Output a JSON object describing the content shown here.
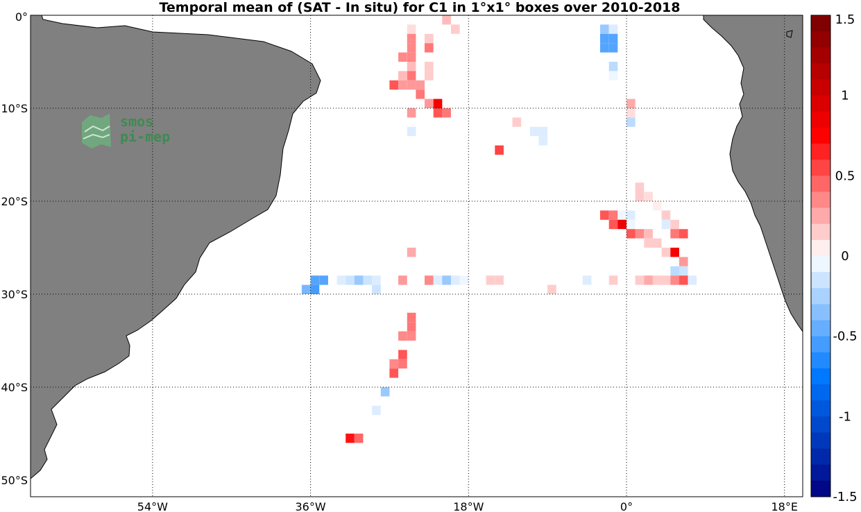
{
  "title": "Temporal mean of (SAT - In situ) for C1 in 1°x1° boxes over 2010-2018",
  "logo": {
    "line1": "smos",
    "line2": "pi-mep",
    "color": "#3f8a52"
  },
  "colors": {
    "land": "#808080",
    "ocean": "#ffffff",
    "grid": "#000000"
  },
  "y_ticks": [
    {
      "label": "0°",
      "lat": 0
    },
    {
      "label": "10°S",
      "lat": -10
    },
    {
      "label": "20°S",
      "lat": -20
    },
    {
      "label": "30°S",
      "lat": -30
    },
    {
      "label": "40°S",
      "lat": -40
    },
    {
      "label": "50°S",
      "lat": -50
    }
  ],
  "x_ticks": [
    {
      "label": "54°W",
      "lon": -54
    },
    {
      "label": "36°W",
      "lon": -36
    },
    {
      "label": "18°W",
      "lon": -18
    },
    {
      "label": "0°",
      "lon": 0
    },
    {
      "label": "18°E",
      "lon": 18
    }
  ],
  "colorbar": {
    "min": -1.5,
    "max": 1.5,
    "ticks": [
      "1.5",
      "1",
      "0.5",
      "0",
      "-0.5",
      "-1",
      "-1.5"
    ],
    "tick_values": [
      1.5,
      1,
      0.5,
      0,
      -0.5,
      -1,
      -1.5
    ]
  },
  "chart_data": {
    "type": "heatmap",
    "title": "Temporal mean of (SAT - In situ) for C1 in 1°x1° boxes over 2010-2018",
    "lon_range": [
      -72,
      20
    ],
    "lat_range": [
      -50,
      0
    ],
    "value_range": [
      -1.5,
      1.5
    ],
    "cells": [
      [
        -24.5,
        -1.5,
        0.1
      ],
      [
        -20.5,
        -0.5,
        0.2
      ],
      [
        -19.5,
        -1.5,
        0.15
      ],
      [
        -24.5,
        -2.5,
        0.35
      ],
      [
        -24.5,
        -3.5,
        0.35
      ],
      [
        -24.5,
        -4.5,
        0.35
      ],
      [
        -22.5,
        -2.5,
        0.15
      ],
      [
        -22.5,
        -3.5,
        0.4
      ],
      [
        -25.5,
        -4.5,
        0.35
      ],
      [
        -24.5,
        -5.5,
        0.2
      ],
      [
        -22.5,
        -5.5,
        0.15
      ],
      [
        -24.5,
        -6.5,
        0.4
      ],
      [
        -25.5,
        -6.5,
        0.2
      ],
      [
        -22.5,
        -6.5,
        0.15
      ],
      [
        -26.5,
        -7.5,
        0.5
      ],
      [
        -25.5,
        -7.5,
        0.3
      ],
      [
        -24.5,
        -7.5,
        0.3
      ],
      [
        -23.5,
        -7.5,
        0.3
      ],
      [
        -23.5,
        -8.5,
        0.4
      ],
      [
        -22.5,
        -9.5,
        0.3
      ],
      [
        -21.5,
        -9.5,
        0.8
      ],
      [
        -20.5,
        -10.5,
        0.4
      ],
      [
        -21.5,
        -10.5,
        0.5
      ],
      [
        -24.5,
        -10.5,
        0.3
      ],
      [
        -24.5,
        -12.5,
        -0.1
      ],
      [
        -12.5,
        -11.5,
        0.15
      ],
      [
        -10.5,
        -12.5,
        -0.1
      ],
      [
        -9.5,
        -12.5,
        -0.1
      ],
      [
        -9.5,
        -13.5,
        -0.1
      ],
      [
        -14.5,
        -14.5,
        0.55
      ],
      [
        -2.5,
        -1.5,
        -0.3
      ],
      [
        -1.5,
        -1.5,
        -0.1
      ],
      [
        -2.5,
        -2.5,
        -0.5
      ],
      [
        -1.5,
        -2.5,
        -0.5
      ],
      [
        -2.5,
        -3.5,
        -0.5
      ],
      [
        -1.5,
        -3.5,
        -0.5
      ],
      [
        -1.5,
        -5.5,
        -0.2
      ],
      [
        -1.5,
        -6.5,
        -0.05
      ],
      [
        0.5,
        -9.5,
        0.25
      ],
      [
        0.5,
        -10.5,
        0.1
      ],
      [
        0.5,
        -11.5,
        -0.2
      ],
      [
        1.5,
        -18.5,
        0.15
      ],
      [
        1.5,
        -19.5,
        0.15
      ],
      [
        2.5,
        -19.5,
        0.1
      ],
      [
        3.5,
        -20.5,
        0.05
      ],
      [
        4.5,
        -21.5,
        0.15
      ],
      [
        -2.5,
        -21.5,
        0.5
      ],
      [
        -1.5,
        -21.5,
        0.4
      ],
      [
        -0.5,
        -21.5,
        -0.05
      ],
      [
        0.5,
        -21.5,
        -0.1
      ],
      [
        5.5,
        -22.5,
        0.15
      ],
      [
        -1.5,
        -22.5,
        0.5
      ],
      [
        -0.5,
        -22.5,
        0.85
      ],
      [
        0.5,
        -22.5,
        -0.05
      ],
      [
        4.5,
        -22.5,
        -0.1
      ],
      [
        0.5,
        -23.5,
        0.5
      ],
      [
        1.5,
        -23.5,
        0.35
      ],
      [
        2.5,
        -23.5,
        0.2
      ],
      [
        5.5,
        -23.5,
        0.4
      ],
      [
        6.5,
        -23.5,
        0.5
      ],
      [
        2.5,
        -24.5,
        0.15
      ],
      [
        3.5,
        -24.5,
        0.15
      ],
      [
        4.5,
        -25.5,
        0.15
      ],
      [
        5.5,
        -25.5,
        0.8
      ],
      [
        6.5,
        -26.5,
        0.3
      ],
      [
        5.5,
        -27.5,
        -0.2
      ],
      [
        6.5,
        -27.5,
        -0.15
      ],
      [
        -24.5,
        -25.5,
        0.25
      ],
      [
        -35.5,
        -28.5,
        -0.5
      ],
      [
        -34.5,
        -28.5,
        -0.5
      ],
      [
        -32.5,
        -28.5,
        -0.1
      ],
      [
        -31.5,
        -28.5,
        -0.15
      ],
      [
        -30.5,
        -28.5,
        -0.3
      ],
      [
        -29.5,
        -28.5,
        -0.15
      ],
      [
        -28.5,
        -28.5,
        -0.1
      ],
      [
        -25.5,
        -28.5,
        0.3
      ],
      [
        -22.5,
        -28.5,
        0.35
      ],
      [
        -21.5,
        -28.5,
        -0.1
      ],
      [
        -20.5,
        -28.5,
        -0.3
      ],
      [
        -19.5,
        -28.5,
        -0.1
      ],
      [
        -18.5,
        -28.5,
        -0.05
      ],
      [
        -15.5,
        -28.5,
        0.15
      ],
      [
        -14.5,
        -28.5,
        0.15
      ],
      [
        -4.5,
        -28.5,
        -0.1
      ],
      [
        -1.5,
        -28.5,
        0.15
      ],
      [
        1.5,
        -28.5,
        0.15
      ],
      [
        2.5,
        -28.5,
        0.25
      ],
      [
        3.5,
        -28.5,
        0.15
      ],
      [
        4.5,
        -28.5,
        0.15
      ],
      [
        5.5,
        -28.5,
        0.35
      ],
      [
        6.5,
        -28.5,
        0.5
      ],
      [
        7.5,
        -28.5,
        -0.1
      ],
      [
        -36.5,
        -29.5,
        -0.4
      ],
      [
        -35.5,
        -29.5,
        -0.55
      ],
      [
        -28.5,
        -29.5,
        -0.15
      ],
      [
        -8.5,
        -29.5,
        0.15
      ],
      [
        -24.5,
        -32.5,
        0.4
      ],
      [
        -24.5,
        -33.5,
        0.4
      ],
      [
        -25.5,
        -34.5,
        0.35
      ],
      [
        -24.5,
        -34.5,
        0.35
      ],
      [
        -25.5,
        -36.5,
        0.5
      ],
      [
        -26.5,
        -37.5,
        0.35
      ],
      [
        -25.5,
        -37.5,
        0.4
      ],
      [
        -26.5,
        -38.5,
        0.5
      ],
      [
        -27.5,
        -40.5,
        -0.3
      ],
      [
        -28.5,
        -42.5,
        -0.1
      ],
      [
        -31.5,
        -45.5,
        0.7
      ],
      [
        -30.5,
        -45.5,
        0.45
      ]
    ]
  }
}
